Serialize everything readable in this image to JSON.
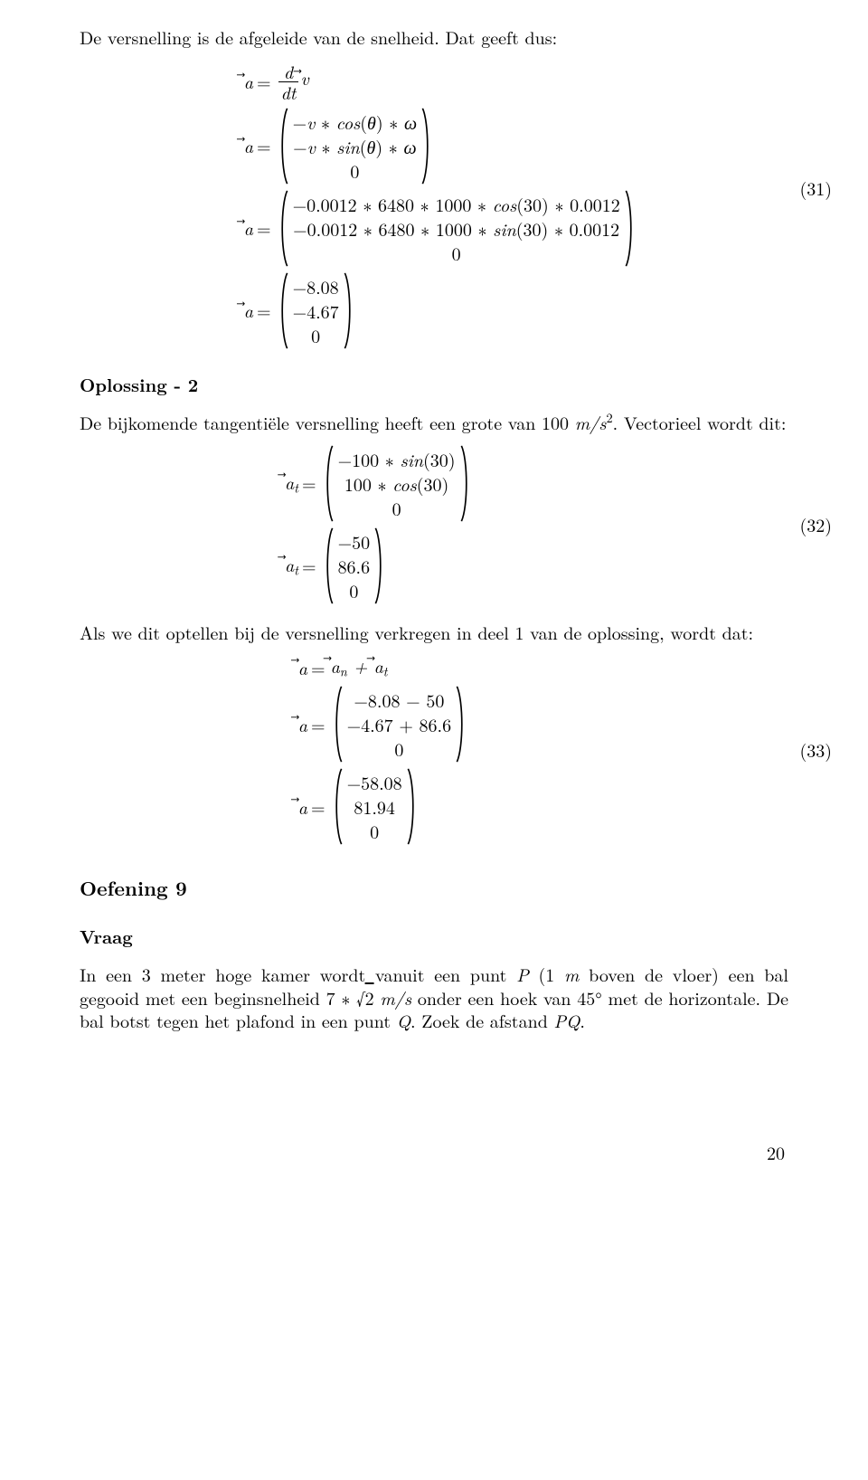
{
  "fontsize_body_pt": 20,
  "background_color": "#ffffff",
  "text_color": "#000000",
  "intro_text": "De versnelling is de afgeleide van de snelheid. Dat geeft dus:",
  "eq31": {
    "number_label": "(31)",
    "lhs_symbol_tex": "\\vec{a}",
    "line1_rhs_html": "<span class='frac'><span class='num it'>d</span><span class='den it'>dt</span></span><span class='arrow-vec'>v</span>",
    "line2_matrix_cells": [
      "−<span class='it'>v</span> ∗ <span class='it'>cos</span>(<span class='it'>θ</span>) ∗ <span class='it'>ω</span>",
      "−<span class='it'>v</span> ∗ <span class='it'>sin</span>(<span class='it'>θ</span>) ∗ <span class='it'>ω</span>",
      "0"
    ],
    "line3_matrix_cells": [
      "−0.0012 ∗ 6480 ∗ 1000 ∗ <span class='it'>cos</span>(30) ∗ 0.0012",
      "−0.0012 ∗ 6480 ∗ 1000 ∗ <span class='it'>sin</span>(30) ∗ 0.0012",
      "0"
    ],
    "line4_matrix_cells": [
      "−8.08",
      "−4.67",
      "0"
    ]
  },
  "heading_oplossing2": "Oplossing - 2",
  "para_oplossing2_html": "De bijkomende tangentiële versnelling heeft een grote van 100 <span class='it'>m/s</span><span class='sup'>2</span>. Vectorieel wordt dit:",
  "eq32": {
    "number_label": "(32)",
    "lhs_symbol_tex": "\\vec{a_t}",
    "line1_matrix_cells": [
      "−100 ∗ <span class='it'>sin</span>(30)",
      "100 ∗ <span class='it'>cos</span>(30)",
      "0"
    ],
    "line2_matrix_cells": [
      "−50",
      "86.6",
      "0"
    ]
  },
  "para_midline": "Als we dit optellen bij de versnelling verkregen in deel 1 van de oplossing, wordt dat:",
  "eq33": {
    "number_label": "(33)",
    "line1_rhs_html": "<span class='arrow-vec'>a<span class='sub'>n</span></span> + <span class='arrow-vec'>a<span class='sub'>t</span></span>",
    "line2_matrix_cells": [
      "−8.08 − 50",
      "−4.67 + 86.6",
      "0"
    ],
    "line3_matrix_cells": [
      "−58.08",
      "81.94",
      "0"
    ]
  },
  "heading_oef9": "Oefening 9",
  "heading_vraag": "Vraag",
  "para_vraag_html": "In een 3 meter hoge kamer wordt vanuit een punt <span class='it'>P</span> (1 <span class='it'>m</span> boven de vloer) een bal gegooid met een beginsnelheid 7 ∗ √<span style='text-decoration:overline;'>2</span> <span class='it'>m/s</span> onder een hoek van 45<span class='circ'>°</span> met de horizontale. De bal botst tegen het plafond in een punt <span class='it'>Q</span>. Zoek de afstand <span class='it'>PQ</span>.",
  "page_number": "20"
}
